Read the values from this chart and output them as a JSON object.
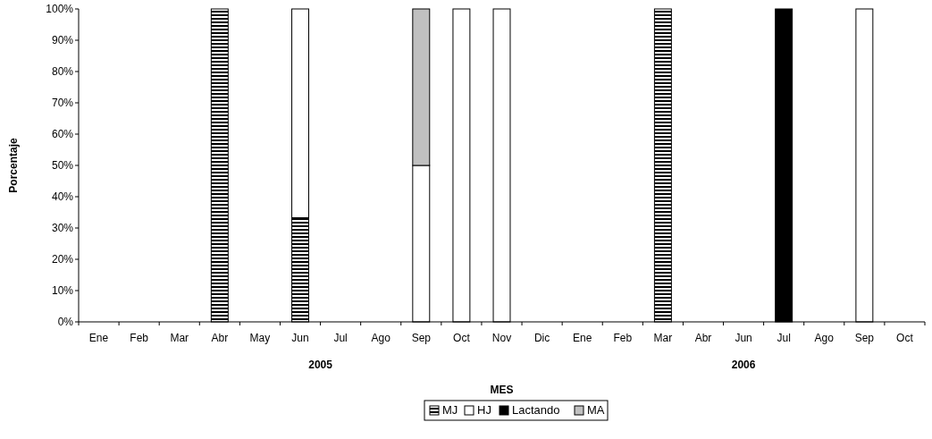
{
  "chart_data": {
    "type": "bar",
    "stacked": true,
    "xlabel": "MES",
    "ylabel": "Porcentaje",
    "legend": "bottom",
    "grid": false,
    "categories": [
      "Ene",
      "Feb",
      "Mar",
      "Abr",
      "May",
      "Jun",
      "Jul",
      "Ago",
      "Sep",
      "Oct",
      "Nov",
      "Dic",
      "Ene",
      "Feb",
      "Mar",
      "Abr",
      "Jun",
      "Jul",
      "Ago",
      "Sep",
      "Oct"
    ],
    "annotations": [
      "2005",
      "2006"
    ],
    "ylim": [
      0,
      100
    ],
    "yticks": [
      {
        "value": 0,
        "label": "0%"
      },
      {
        "value": 10,
        "label": "10%"
      },
      {
        "value": 20,
        "label": "20%"
      },
      {
        "value": 30,
        "label": "30%"
      },
      {
        "value": 40,
        "label": "40%"
      },
      {
        "value": 50,
        "label": "50%"
      },
      {
        "value": 60,
        "label": "60%"
      },
      {
        "value": 70,
        "label": "70%"
      },
      {
        "value": 80,
        "label": "80%"
      },
      {
        "value": 90,
        "label": "90%"
      },
      {
        "value": 100,
        "label": "100%"
      }
    ],
    "series": [
      {
        "name": "MJ",
        "color": "#000000",
        "values": [
          0,
          0,
          0,
          100,
          0,
          33.3,
          0,
          0,
          0,
          0,
          0,
          0,
          0,
          0,
          100,
          0,
          0,
          0,
          0,
          0,
          0
        ]
      },
      {
        "name": "HJ",
        "color": "#ffffff",
        "values": [
          0,
          0,
          0,
          0,
          0,
          66.7,
          0,
          0,
          50,
          100,
          100,
          0,
          0,
          0,
          0,
          0,
          0,
          0,
          0,
          100,
          0
        ]
      },
      {
        "name": "Lactando",
        "color": "#000000",
        "values": [
          0,
          0,
          0,
          0,
          0,
          0,
          0,
          0,
          0,
          0,
          0,
          0,
          0,
          0,
          0,
          0,
          0,
          100,
          0,
          0,
          0
        ]
      },
      {
        "name": "MA",
        "color": "#c0c0c0",
        "values": [
          0,
          0,
          0,
          0,
          0,
          0,
          0,
          0,
          50,
          0,
          0,
          0,
          0,
          0,
          0,
          0,
          0,
          0,
          0,
          0,
          0
        ]
      }
    ]
  }
}
